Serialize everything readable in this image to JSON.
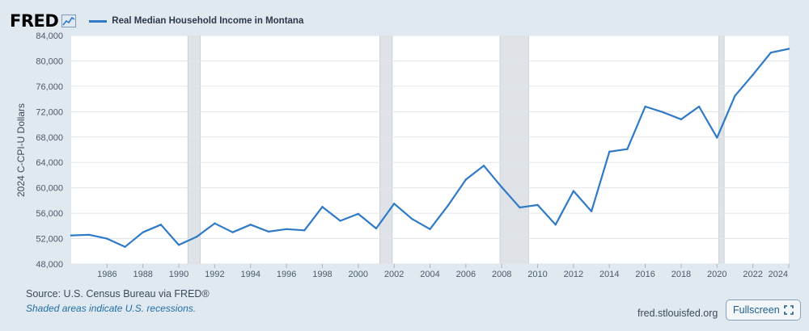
{
  "header": {
    "logo": "FRED",
    "legend_label": "Real Median Household Income in Montana"
  },
  "chart_data": {
    "type": "line",
    "title": "Real Median Household Income in Montana",
    "xlabel": "",
    "ylabel": "2024 C-CPI-U Dollars",
    "xlim": [
      1984,
      2024
    ],
    "ylim": [
      48000,
      84000
    ],
    "x_ticks": [
      1986,
      1988,
      1990,
      1992,
      1994,
      1996,
      1998,
      2000,
      2002,
      2004,
      2006,
      2008,
      2010,
      2012,
      2014,
      2016,
      2018,
      2020,
      2022,
      2024
    ],
    "x_tick_labels": [
      "1986",
      "1988",
      "1990",
      "1992",
      "1994",
      "1996",
      "1998",
      "2000",
      "2002",
      "2004",
      "2006",
      "2008",
      "2010",
      "2012",
      "2014",
      "2016",
      "2018",
      "2020",
      "2022",
      "2024"
    ],
    "y_ticks": [
      48000,
      52000,
      56000,
      60000,
      64000,
      68000,
      72000,
      76000,
      80000,
      84000
    ],
    "y_tick_labels": [
      "48,000",
      "52,000",
      "56,000",
      "60,000",
      "64,000",
      "68,000",
      "72,000",
      "76,000",
      "80,000",
      "84,000"
    ],
    "grid": true,
    "recessions": [
      [
        1990.5,
        1991.2
      ],
      [
        2001.2,
        2001.9
      ],
      [
        2007.9,
        2009.5
      ],
      [
        2020.1,
        2020.4
      ]
    ],
    "series": [
      {
        "name": "Real Median Household Income in Montana",
        "color": "#2f7ac7",
        "x": [
          1984,
          1985,
          1986,
          1987,
          1988,
          1989,
          1990,
          1991,
          1992,
          1993,
          1994,
          1995,
          1996,
          1997,
          1998,
          1999,
          2000,
          2001,
          2002,
          2003,
          2004,
          2005,
          2006,
          2007,
          2008,
          2009,
          2010,
          2011,
          2012,
          2013,
          2014,
          2015,
          2016,
          2017,
          2018,
          2019,
          2020,
          2021,
          2022,
          2023,
          2024
        ],
        "values": [
          52500,
          52600,
          52000,
          50700,
          53000,
          54200,
          51000,
          52300,
          54400,
          53000,
          54200,
          53100,
          53500,
          53300,
          57000,
          54800,
          55900,
          53600,
          57500,
          55100,
          53500,
          57200,
          61300,
          63500,
          60100,
          56900,
          57300,
          54200,
          59500,
          56300,
          65700,
          66100,
          72800,
          71900,
          70800,
          72800,
          67900,
          74500,
          77800,
          81300,
          81900
        ]
      }
    ]
  },
  "footer": {
    "source": "Source: U.S. Census Bureau via FRED®",
    "note": "Shaded areas indicate U.S. recessions.",
    "link": "fred.stlouisfed.org",
    "fullscreen_label": "Fullscreen"
  }
}
